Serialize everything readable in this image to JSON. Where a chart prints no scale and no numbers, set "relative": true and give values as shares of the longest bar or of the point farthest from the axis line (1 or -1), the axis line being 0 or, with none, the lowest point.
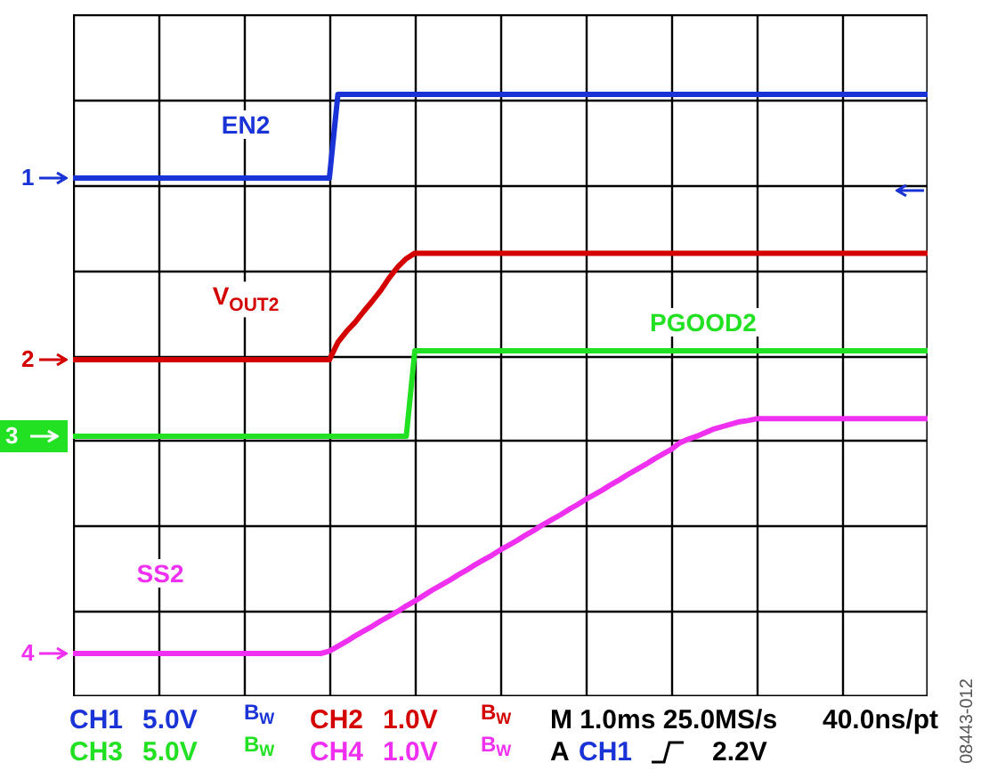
{
  "chart_data": {
    "type": "line",
    "relative": true,
    "grid": true,
    "categories": [
      null,
      null,
      null,
      null,
      null,
      null,
      null,
      null,
      null,
      null,
      null,
      null,
      null,
      null,
      null,
      null,
      null,
      null,
      null,
      null,
      null,
      null,
      null,
      null,
      null,
      null,
      null,
      null,
      null,
      null,
      null,
      null,
      null,
      null,
      null,
      null,
      null,
      null,
      null,
      null,
      null,
      null,
      null,
      null,
      null,
      null,
      null,
      null,
      null,
      null,
      null,
      null,
      null,
      null,
      null,
      null,
      null,
      null,
      null,
      null,
      null,
      null,
      null,
      null,
      null,
      null,
      null,
      null,
      null,
      null,
      null,
      null,
      null,
      null,
      null,
      null,
      null,
      null,
      null,
      null,
      null,
      null,
      null,
      null,
      null,
      null,
      null,
      null,
      null,
      null,
      null,
      null,
      null,
      null,
      null,
      null,
      null,
      null,
      null,
      null,
      null
    ],
    "series": [
      {
        "name": "EN2",
        "color": "#1a33d6",
        "values": [
          0.861,
          0.861,
          0.861,
          0.861,
          0.861,
          0.861,
          0.861,
          0.861,
          0.861,
          0.861,
          0.861,
          0.861,
          0.861,
          0.861,
          0.861,
          0.861,
          0.861,
          0.861,
          0.861,
          0.861,
          0.861,
          0.861,
          0.861,
          0.861,
          0.861,
          0.861,
          0.861,
          0.861,
          0.861,
          0.861,
          0.861,
          1,
          1,
          1,
          1,
          1,
          1,
          1,
          1,
          1,
          1,
          1,
          1,
          1,
          1,
          1,
          1,
          1,
          1,
          1,
          1,
          1,
          1,
          1,
          1,
          1,
          1,
          1,
          1,
          1,
          1,
          1,
          1,
          1,
          1,
          1,
          1,
          1,
          1,
          1,
          1,
          1,
          1,
          1,
          1,
          1,
          1,
          1,
          1,
          1,
          1,
          1,
          1,
          1,
          1,
          1,
          1,
          1,
          1,
          1,
          1,
          1,
          1,
          1,
          1,
          1,
          1,
          1,
          1,
          1,
          1
        ]
      },
      {
        "name": "V$_{OUT2}$",
        "color": "#d40000",
        "values": [
          0.559,
          0.559,
          0.559,
          0.559,
          0.559,
          0.559,
          0.559,
          0.559,
          0.559,
          0.559,
          0.559,
          0.559,
          0.559,
          0.559,
          0.559,
          0.559,
          0.559,
          0.559,
          0.559,
          0.559,
          0.559,
          0.559,
          0.559,
          0.559,
          0.559,
          0.559,
          0.559,
          0.559,
          0.559,
          0.559,
          0.559,
          0.588,
          0.606,
          0.621,
          0.639,
          0.656,
          0.674,
          0.695,
          0.713,
          0.727,
          0.736,
          0.736,
          0.736,
          0.736,
          0.736,
          0.736,
          0.736,
          0.736,
          0.736,
          0.736,
          0.736,
          0.736,
          0.736,
          0.736,
          0.736,
          0.736,
          0.736,
          0.736,
          0.736,
          0.736,
          0.736,
          0.736,
          0.736,
          0.736,
          0.736,
          0.736,
          0.736,
          0.736,
          0.736,
          0.736,
          0.736,
          0.736,
          0.736,
          0.736,
          0.736,
          0.736,
          0.736,
          0.736,
          0.736,
          0.736,
          0.736,
          0.736,
          0.736,
          0.736,
          0.736,
          0.736,
          0.736,
          0.736,
          0.736,
          0.736,
          0.736,
          0.736,
          0.736,
          0.736,
          0.736,
          0.736,
          0.736,
          0.736,
          0.736,
          0.736,
          0.736
        ]
      },
      {
        "name": "PGOOD2",
        "color": "#22e022",
        "values": [
          0.432,
          0.432,
          0.432,
          0.432,
          0.432,
          0.432,
          0.432,
          0.432,
          0.432,
          0.432,
          0.432,
          0.432,
          0.432,
          0.432,
          0.432,
          0.432,
          0.432,
          0.432,
          0.432,
          0.432,
          0.432,
          0.432,
          0.432,
          0.432,
          0.432,
          0.432,
          0.432,
          0.432,
          0.432,
          0.432,
          0.432,
          0.432,
          0.432,
          0.432,
          0.432,
          0.432,
          0.432,
          0.432,
          0.432,
          0.432,
          0.574,
          0.574,
          0.574,
          0.574,
          0.574,
          0.574,
          0.574,
          0.574,
          0.574,
          0.574,
          0.574,
          0.574,
          0.574,
          0.574,
          0.574,
          0.574,
          0.574,
          0.574,
          0.574,
          0.574,
          0.574,
          0.574,
          0.574,
          0.574,
          0.574,
          0.574,
          0.574,
          0.574,
          0.574,
          0.574,
          0.574,
          0.574,
          0.574,
          0.574,
          0.574,
          0.574,
          0.574,
          0.574,
          0.574,
          0.574,
          0.574,
          0.574,
          0.574,
          0.574,
          0.574,
          0.574,
          0.574,
          0.574,
          0.574,
          0.574,
          0.574,
          0.574,
          0.574,
          0.574,
          0.574,
          0.574,
          0.574,
          0.574,
          0.574,
          0.574,
          0.574
        ]
      },
      {
        "name": "SS2",
        "color": "#f030f0",
        "values": [
          0.071,
          0.071,
          0.071,
          0.071,
          0.071,
          0.071,
          0.071,
          0.071,
          0.071,
          0.071,
          0.071,
          0.071,
          0.071,
          0.071,
          0.071,
          0.071,
          0.071,
          0.071,
          0.071,
          0.071,
          0.071,
          0.071,
          0.071,
          0.071,
          0.071,
          0.071,
          0.071,
          0.071,
          0.071,
          0.071,
          0.075,
          0.083,
          0.091,
          0.1,
          0.108,
          0.116,
          0.125,
          0.133,
          0.141,
          0.15,
          0.158,
          0.167,
          0.176,
          0.184,
          0.192,
          0.201,
          0.209,
          0.218,
          0.226,
          0.234,
          0.243,
          0.251,
          0.259,
          0.268,
          0.276,
          0.285,
          0.293,
          0.301,
          0.31,
          0.318,
          0.327,
          0.335,
          0.343,
          0.352,
          0.36,
          0.369,
          0.377,
          0.385,
          0.394,
          0.402,
          0.41,
          0.421,
          0.427,
          0.432,
          0.438,
          0.444,
          0.448,
          0.452,
          0.456,
          0.458,
          0.461,
          0.461,
          0.461,
          0.461,
          0.461,
          0.461,
          0.461,
          0.461,
          0.461,
          0.461,
          0.461,
          0.461,
          0.461,
          0.461,
          0.461,
          0.461,
          0.461,
          0.461,
          0.461,
          0.461,
          0.461
        ]
      }
    ],
    "annotations": [
      "1",
      "2",
      "3",
      "4",
      "CH1",
      "5.0V",
      "B$_{W}$",
      "CH2",
      "1.0V",
      "B$_{W}$",
      "M 1.0ms 25.0MS/s",
      "40.0ns/pt",
      "CH3",
      "5.0V",
      "B$_{W}$",
      "CH4",
      "1.0V",
      "B$_{W}$",
      "A",
      "CH1",
      "2.2V",
      "08443-012"
    ]
  }
}
